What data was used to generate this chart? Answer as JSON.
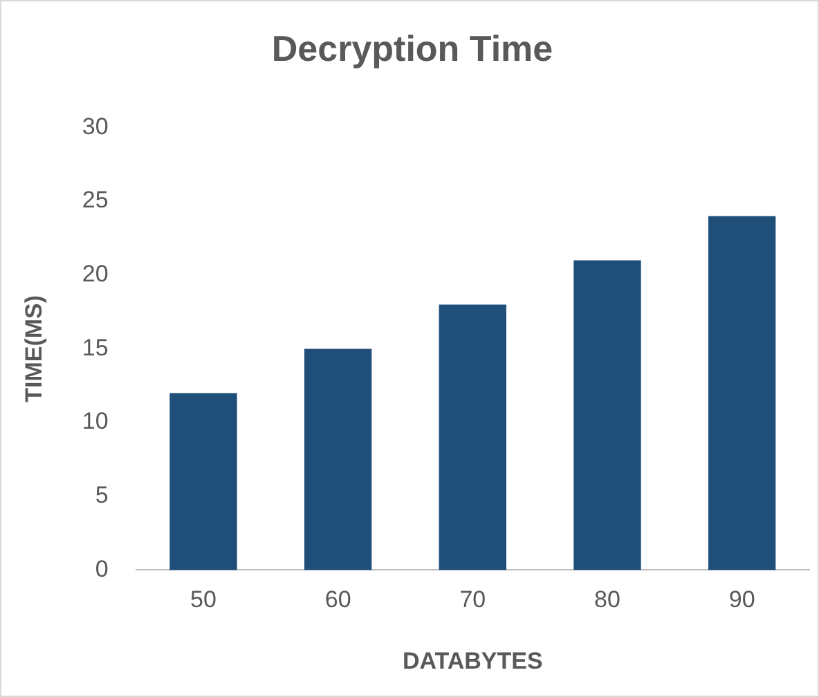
{
  "chart_data": {
    "type": "bar",
    "title": "Decryption Time",
    "xlabel": "DATABYTES",
    "ylabel": "TIME(MS)",
    "categories": [
      "50",
      "60",
      "70",
      "80",
      "90"
    ],
    "values": [
      12,
      15,
      18,
      21,
      24
    ],
    "color": "#1f4e79",
    "ylim": [
      0,
      30
    ],
    "yticks": [
      0,
      5,
      10,
      15,
      20,
      25,
      30
    ],
    "grid": false,
    "legend": false
  }
}
